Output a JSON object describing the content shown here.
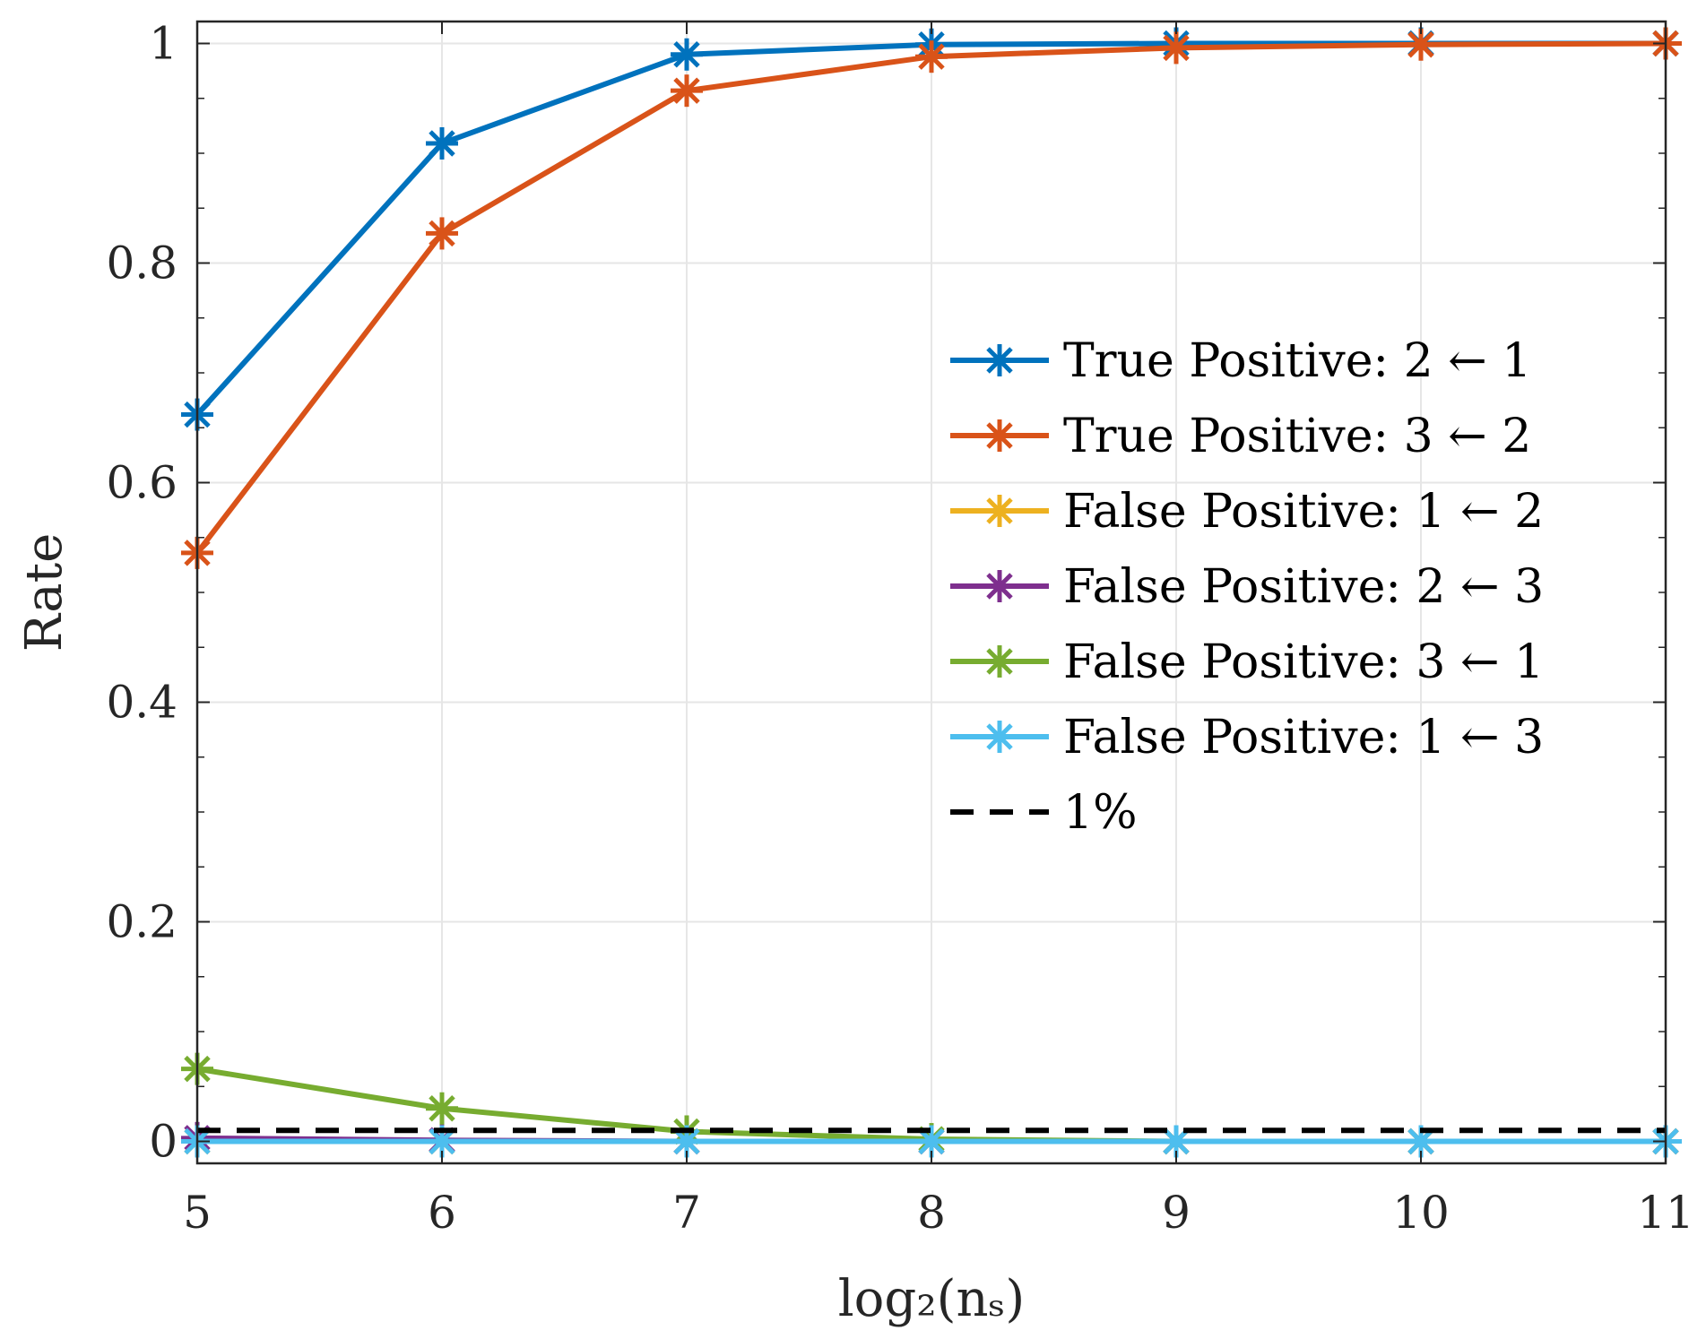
{
  "chart_data": {
    "type": "line",
    "title": "",
    "xlabel": "log₂(nₛ)",
    "ylabel": "Rate",
    "x": [
      5,
      6,
      7,
      8,
      9,
      10,
      11
    ],
    "xlim": [
      5,
      11
    ],
    "ylim": [
      -0.02,
      1.02
    ],
    "xticks": [
      "5",
      "6",
      "7",
      "8",
      "9",
      "10",
      "11"
    ],
    "yticks": [
      {
        "value": 0,
        "label": "0"
      },
      {
        "value": 0.2,
        "label": "0.2"
      },
      {
        "value": 0.4,
        "label": "0.4"
      },
      {
        "value": 0.6,
        "label": "0.6"
      },
      {
        "value": 0.8,
        "label": "0.8"
      },
      {
        "value": 1,
        "label": "1"
      }
    ],
    "grid": true,
    "legend_position": "center-right",
    "series": [
      {
        "name": "True Positive: 2 ← 1",
        "color": "#0072BD",
        "marker": "asterisk",
        "values": [
          0.662,
          0.909,
          0.99,
          0.999,
          1.0,
          1.0,
          1.0
        ]
      },
      {
        "name": "True Positive: 3 ← 2",
        "color": "#D95319",
        "marker": "asterisk",
        "values": [
          0.536,
          0.827,
          0.957,
          0.988,
          0.996,
          0.999,
          1.0
        ]
      },
      {
        "name": "False Positive: 1 ← 2",
        "color": "#EDB120",
        "marker": "asterisk",
        "values": [
          0.0,
          0.0,
          0.0,
          0.0,
          0.0,
          0.0,
          0.0
        ]
      },
      {
        "name": "False Positive: 2 ← 3",
        "color": "#7E2F8E",
        "marker": "asterisk",
        "values": [
          0.003,
          0.001,
          0.0,
          0.0,
          0.0,
          0.0,
          0.0
        ]
      },
      {
        "name": "False Positive: 3 ← 1",
        "color": "#77AC30",
        "marker": "asterisk",
        "values": [
          0.066,
          0.03,
          0.009,
          0.002,
          0.0,
          0.0,
          0.0
        ]
      },
      {
        "name": "False Positive: 1 ← 3",
        "color": "#4DBEEE",
        "marker": "asterisk",
        "values": [
          0.0,
          0.0,
          0.0,
          0.0,
          0.0,
          0.0,
          0.0
        ]
      },
      {
        "name": "1%",
        "color": "#000000",
        "style": "dashed",
        "marker": "none",
        "values": [
          0.01,
          0.01,
          0.01,
          0.01,
          0.01,
          0.01,
          0.01
        ]
      }
    ]
  }
}
